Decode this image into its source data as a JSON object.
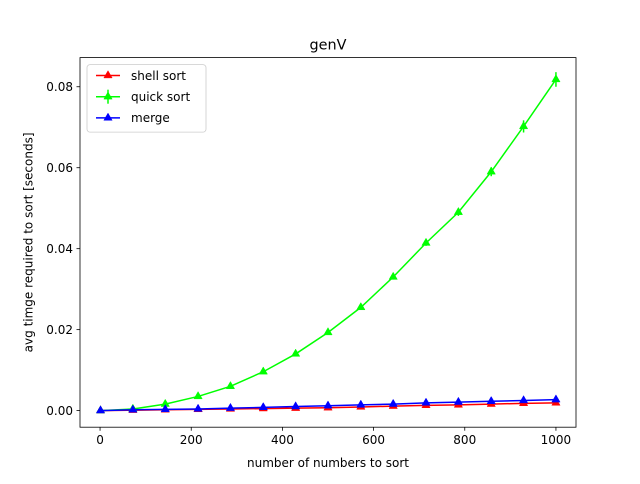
{
  "chart_data": {
    "type": "line",
    "title": "genV",
    "xlabel": "number of numbers to sort",
    "ylabel": "avg timge required to sort  [seconds]",
    "xlim": [
      -44,
      1044
    ],
    "ylim": [
      -0.0041,
      0.0872
    ],
    "x_ticks": [
      0,
      200,
      400,
      600,
      800,
      1000
    ],
    "x_tick_labels": [
      "0",
      "200",
      "400",
      "600",
      "800",
      "1000"
    ],
    "y_ticks": [
      0.0,
      0.02,
      0.04,
      0.06,
      0.08
    ],
    "y_tick_labels": [
      "0.00",
      "0.02",
      "0.04",
      "0.06",
      "0.08"
    ],
    "grid": false,
    "legend_position": "top-left",
    "x": [
      1,
      72,
      143,
      215,
      286,
      358,
      429,
      500,
      572,
      643,
      715,
      786,
      858,
      929,
      1000
    ],
    "series": [
      {
        "name": "shell sort",
        "color": "#ff0000",
        "marker": "triangle-up",
        "values": [
          0.0,
          0.0001,
          0.0002,
          0.0003,
          0.0004,
          0.0005,
          0.0006,
          0.0007,
          0.0009,
          0.0011,
          0.0013,
          0.0014,
          0.0016,
          0.0018,
          0.0019
        ]
      },
      {
        "name": "quick sort",
        "color": "#00ff00",
        "marker": "triangle-up",
        "values": [
          0.0,
          0.0004,
          0.0016,
          0.0035,
          0.006,
          0.0096,
          0.014,
          0.0193,
          0.0255,
          0.033,
          0.0414,
          0.049,
          0.059,
          0.0702,
          0.0818
        ],
        "error": [
          0.0002,
          0.0002,
          0.0002,
          0.0003,
          0.0004,
          0.0004,
          0.0004,
          0.0005,
          0.0005,
          0.0006,
          0.0007,
          0.0009,
          0.0011,
          0.0015,
          0.0018
        ]
      },
      {
        "name": "merge",
        "color": "#0000ff",
        "marker": "triangle-up",
        "values": [
          0.0,
          0.0002,
          0.0003,
          0.0004,
          0.0006,
          0.0008,
          0.001,
          0.0012,
          0.0014,
          0.0016,
          0.0019,
          0.0021,
          0.0023,
          0.0025,
          0.0027
        ]
      }
    ]
  }
}
